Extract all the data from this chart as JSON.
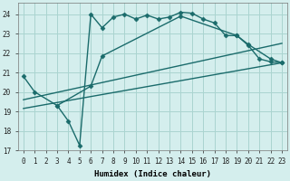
{
  "xlabel": "Humidex (Indice chaleur)",
  "xlim": [
    -0.5,
    23.5
  ],
  "ylim": [
    17,
    24.6
  ],
  "yticks": [
    17,
    18,
    19,
    20,
    21,
    22,
    23,
    24
  ],
  "xticks": [
    0,
    1,
    2,
    3,
    4,
    5,
    6,
    7,
    8,
    9,
    10,
    11,
    12,
    13,
    14,
    15,
    16,
    17,
    18,
    19,
    20,
    21,
    22,
    23
  ],
  "bg_color": "#d4eeed",
  "grid_color": "#aad4d0",
  "line_color": "#1a6b6b",
  "lines": [
    {
      "x": [
        0,
        1,
        3,
        4,
        5,
        6,
        7,
        8,
        9,
        10,
        11,
        12,
        13,
        14,
        15,
        16,
        17,
        18,
        19,
        20,
        21,
        22,
        23
      ],
      "y": [
        20.8,
        20.0,
        19.3,
        18.5,
        17.25,
        24.0,
        23.3,
        23.85,
        24.0,
        23.75,
        23.95,
        23.75,
        23.85,
        24.1,
        24.05,
        23.75,
        23.55,
        22.9,
        22.9,
        22.4,
        21.7,
        21.55,
        21.5
      ],
      "marker": "D",
      "markersize": 2.5,
      "linewidth": 1.0
    },
    {
      "x": [
        3,
        6,
        7,
        14,
        19,
        20,
        22,
        23
      ],
      "y": [
        19.3,
        20.3,
        21.85,
        23.9,
        22.9,
        22.45,
        21.7,
        21.5
      ],
      "marker": "D",
      "markersize": 2.5,
      "linewidth": 1.0
    },
    {
      "x": [
        0,
        23
      ],
      "y": [
        19.6,
        22.5
      ],
      "marker": null,
      "markersize": 0,
      "linewidth": 1.0
    },
    {
      "x": [
        0,
        23
      ],
      "y": [
        19.15,
        21.5
      ],
      "marker": null,
      "markersize": 0,
      "linewidth": 1.0
    }
  ]
}
